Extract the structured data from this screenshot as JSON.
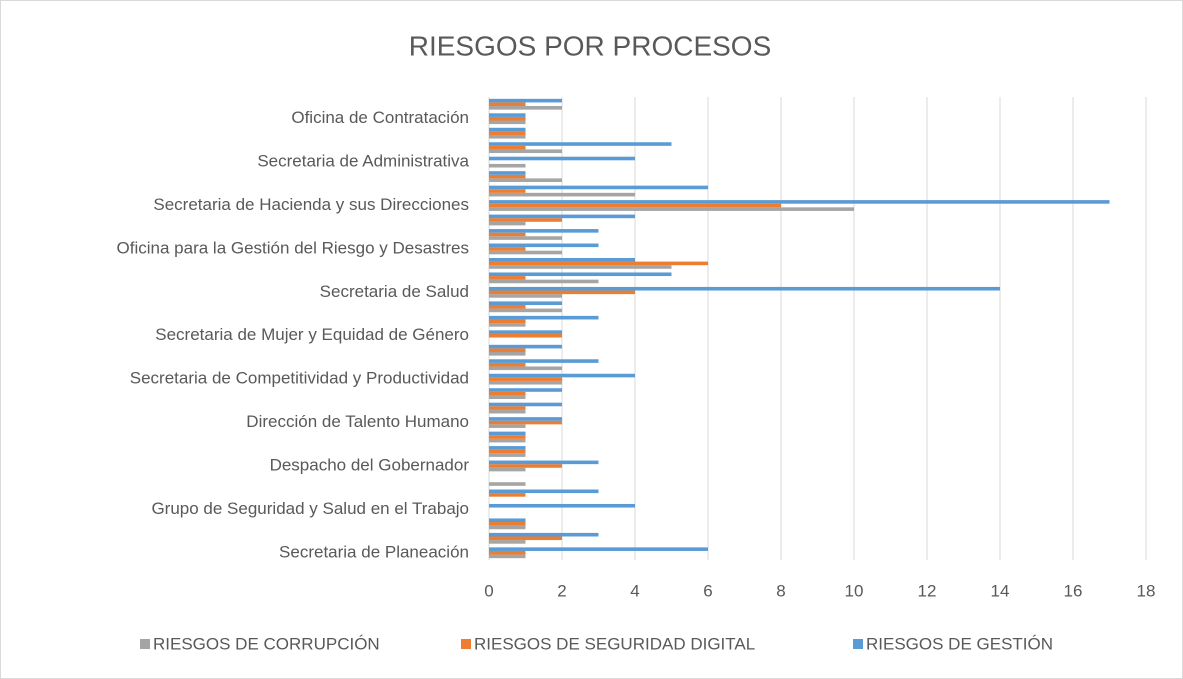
{
  "chart_data": {
    "type": "hbar",
    "title": "RIESGOS POR PROCESOS",
    "categories": [
      "Secretaria de Planeación",
      null,
      null,
      "Grupo de Seguridad y Salud en el Trabajo",
      null,
      null,
      "Despacho del Gobernador",
      null,
      null,
      "Dirección de Talento Humano ",
      null,
      null,
      "Secretaria de Competitividad y Productividad",
      null,
      null,
      "Secretaria de Mujer y Equidad de Género",
      null,
      null,
      "Secretaria de Salud",
      null,
      null,
      "Oficina para la Gestión del Riesgo y Desastres",
      null,
      null,
      "Secretaria de Hacienda y sus Direcciones",
      null,
      null,
      "Secretaria de Administrativa",
      null,
      null,
      "Oficina de Contratación",
      null
    ],
    "series": [
      {
        "name": "RIESGOS DE CORRUPCIÓN",
        "color": "#a5a5a5",
        "values": [
          1,
          1,
          1,
          0,
          0,
          1,
          1,
          1,
          1,
          1,
          1,
          1,
          2,
          2,
          1,
          0,
          1,
          2,
          2,
          3,
          5,
          2,
          2,
          1,
          10,
          4,
          2,
          1,
          2,
          1,
          1,
          2
        ]
      },
      {
        "name": "RIESGOS DE SEGURIDAD DIGITAL",
        "color": "#ed7d31",
        "values": [
          1,
          2,
          1,
          0,
          1,
          0,
          2,
          1,
          1,
          2,
          1,
          1,
          2,
          1,
          1,
          2,
          1,
          1,
          4,
          1,
          6,
          1,
          1,
          2,
          8,
          1,
          1,
          0,
          1,
          1,
          1,
          1
        ]
      },
      {
        "name": "RIESGOS DE GESTIÓN",
        "color": "#5b9bd5",
        "values": [
          6,
          3,
          1,
          4,
          3,
          0,
          3,
          1,
          1,
          2,
          2,
          2,
          4,
          3,
          2,
          2,
          3,
          2,
          14,
          5,
          4,
          3,
          3,
          4,
          17,
          6,
          1,
          4,
          5,
          1,
          1,
          2
        ]
      }
    ],
    "xlim": [
      0,
      18
    ],
    "xticks": [
      0,
      2,
      4,
      6,
      8,
      10,
      12,
      14,
      16,
      18
    ],
    "grid": true,
    "legend": "bottom"
  }
}
